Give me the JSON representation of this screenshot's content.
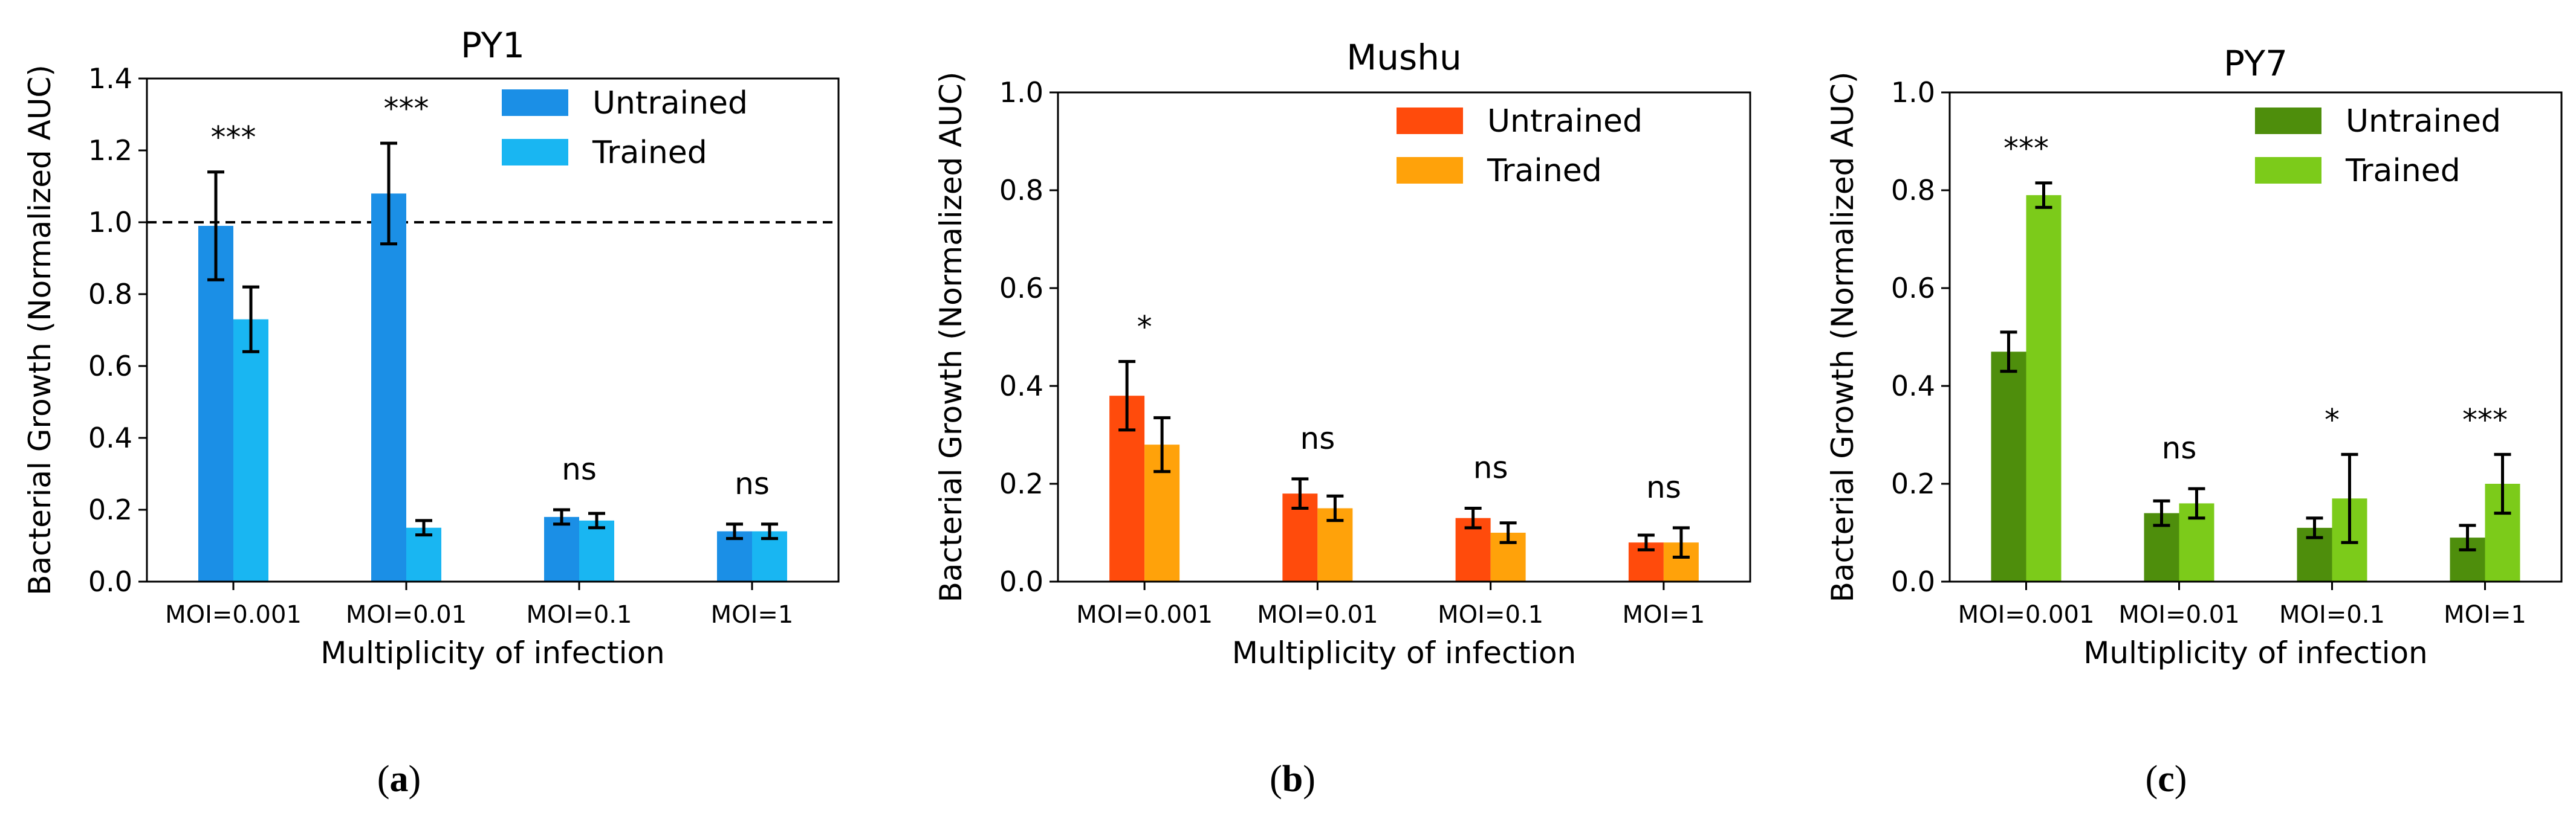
{
  "chart_data": [
    {
      "type": "bar",
      "panel_label": "a",
      "title": "PY1",
      "xlabel": "Multiplicity of infection",
      "ylabel": "Bacterial Growth (Normalized AUC)",
      "ylim": [
        0,
        1.4
      ],
      "yticks": [
        "0.0",
        "0.2",
        "0.4",
        "0.6",
        "0.8",
        "1.0",
        "1.2",
        "1.4"
      ],
      "categories": [
        "MOI=0.001",
        "MOI=0.01",
        "MOI=0.1",
        "MOI=1"
      ],
      "reference_line": 1.0,
      "legend_position": "top-right",
      "series": [
        {
          "name": "Untrained",
          "color": "#1b8fe6",
          "values": [
            0.99,
            1.08,
            0.18,
            0.14
          ],
          "errors": [
            0.15,
            0.14,
            0.02,
            0.02
          ]
        },
        {
          "name": "Trained",
          "color": "#19b6f2",
          "values": [
            0.73,
            0.15,
            0.17,
            0.14
          ],
          "errors": [
            0.09,
            0.02,
            0.02,
            0.02
          ]
        }
      ],
      "significance": [
        "***",
        "***",
        "ns",
        "ns"
      ]
    },
    {
      "type": "bar",
      "panel_label": "b",
      "title": "Mushu",
      "xlabel": "Multiplicity of infection",
      "ylabel": "Bacterial Growth (Normalized AUC)",
      "ylim": [
        0,
        1.0
      ],
      "yticks": [
        "0.0",
        "0.2",
        "0.4",
        "0.6",
        "0.8",
        "1.0"
      ],
      "categories": [
        "MOI=0.001",
        "MOI=0.01",
        "MOI=0.1",
        "MOI=1"
      ],
      "reference_line": null,
      "legend_position": "top-right",
      "series": [
        {
          "name": "Untrained",
          "color": "#ff4b0c",
          "values": [
            0.38,
            0.18,
            0.13,
            0.08
          ],
          "errors": [
            0.07,
            0.03,
            0.02,
            0.015
          ]
        },
        {
          "name": "Trained",
          "color": "#ffa20a",
          "values": [
            0.28,
            0.15,
            0.1,
            0.08
          ],
          "errors": [
            0.055,
            0.025,
            0.02,
            0.03
          ]
        }
      ],
      "significance": [
        "*",
        "ns",
        "ns",
        "ns"
      ]
    },
    {
      "type": "bar",
      "panel_label": "c",
      "title": "PY7",
      "xlabel": "Multiplicity of infection",
      "ylabel": "Bacterial Growth (Normalized AUC)",
      "ylim": [
        0,
        1.0
      ],
      "yticks": [
        "0.0",
        "0.2",
        "0.4",
        "0.6",
        "0.8",
        "1.0"
      ],
      "categories": [
        "MOI=0.001",
        "MOI=0.01",
        "MOI=0.1",
        "MOI=1"
      ],
      "reference_line": null,
      "legend_position": "top-right",
      "series": [
        {
          "name": "Untrained",
          "color": "#4e8e0c",
          "values": [
            0.47,
            0.14,
            0.11,
            0.09
          ],
          "errors": [
            0.04,
            0.025,
            0.02,
            0.025
          ]
        },
        {
          "name": "Trained",
          "color": "#7ccb1a",
          "values": [
            0.79,
            0.16,
            0.17,
            0.2
          ],
          "errors": [
            0.025,
            0.03,
            0.09,
            0.06
          ]
        }
      ],
      "significance": [
        "***",
        "ns",
        "*",
        "***"
      ]
    }
  ]
}
